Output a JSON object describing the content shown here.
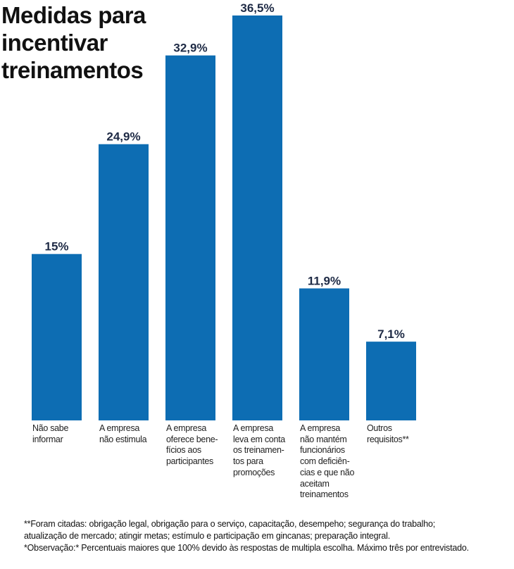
{
  "chart_data": {
    "type": "bar",
    "title_lines": [
      "Medidas para",
      "incentivar",
      "treinamentos"
    ],
    "bar_color": "#0d6db3",
    "label_color": "#1e2a45",
    "ylim": [
      0,
      36.5
    ],
    "categories": [
      [
        "Não sabe",
        "informar"
      ],
      [
        "A empresa",
        "não estimula"
      ],
      [
        "A empresa",
        "oferece bene-",
        "fícios aos",
        "participantes"
      ],
      [
        "A empresa",
        "leva em conta",
        "os treinamen-",
        "tos para",
        "promoções"
      ],
      [
        "A empresa",
        "não mantém",
        "funcionários",
        "com deficiên-",
        "cias e que não",
        "aceitam",
        "treinamentos"
      ],
      [
        "Outros",
        "requisitos**"
      ]
    ],
    "values": [
      15,
      24.9,
      32.9,
      36.5,
      11.9,
      7.1
    ],
    "value_labels": [
      "15%",
      "24,9%",
      "32,9%",
      "36,5%",
      "11,9%",
      "7,1%"
    ]
  },
  "notes": [
    "**Foram citadas: obrigação legal, obrigação para o serviço, capacitação, desempeho; segurança do trabalho;",
    "atualização de mercado; atingir metas; estímulo e participação em gincanas; preparação integral.",
    "*Observação:* Percentuais maiores que 100% devido às respostas de multipla escolha. Máximo três por entrevistado."
  ]
}
